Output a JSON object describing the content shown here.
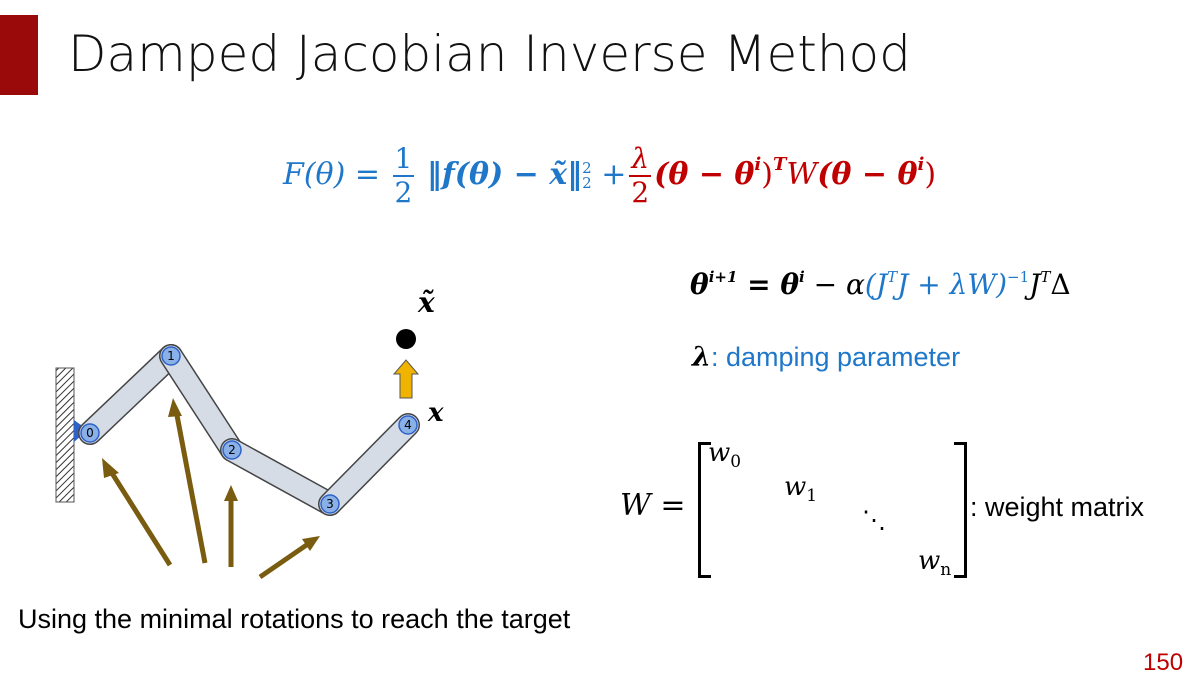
{
  "slide": {
    "title": "Damped Jacobian Inverse Method",
    "page_number": "150",
    "accent_color": "#9b0a0a"
  },
  "objective": {
    "lhs": "F(θ) =",
    "half_num": "1",
    "half_den": "2",
    "norm": "‖f(θ) − x̃‖",
    "norm_sup": "2",
    "norm_sub": "2",
    "plus": "+",
    "lambda_num": "λ",
    "lambda_den": "2",
    "reg_term": "(θ − θ",
    "reg_sup_i": "i",
    "reg_close": ")",
    "reg_T": "T",
    "reg_W": "W",
    "reg_term2": "(θ − θ",
    "reg_sup_i2": "i",
    "reg_close2": ")",
    "blue_color": "#1f77c9",
    "red_color": "#c00000"
  },
  "update": {
    "lhs": "θ",
    "lhs_sup": "i+1",
    "eq": " = θ",
    "eq_sup": "i",
    "minus_alpha": " − α",
    "inner": "(J",
    "inner_T": "T",
    "inner_mid": "J + λW)",
    "inner_sup": "−1",
    "tail": "J",
    "tail_T": "T",
    "tail_end": "Δ"
  },
  "damping": {
    "symbol": "λ",
    "text": ": damping parameter"
  },
  "weight_matrix": {
    "lhs": "W =",
    "entries": [
      "w",
      "w",
      "w"
    ],
    "subs": [
      "0",
      "1",
      "n"
    ],
    "dots": "⋱",
    "label": ": weight matrix"
  },
  "diagram": {
    "target_label": "x̃",
    "end_label": "x",
    "joint_labels": [
      "0",
      "1",
      "2",
      "3",
      "4"
    ],
    "arm_color": "#d5dce6",
    "joint_color": "#8ab0e8",
    "arrow_color": "#7a5c10",
    "up_arrow_color": "#f0b400"
  },
  "caption": "Using the minimal rotations to reach the target"
}
